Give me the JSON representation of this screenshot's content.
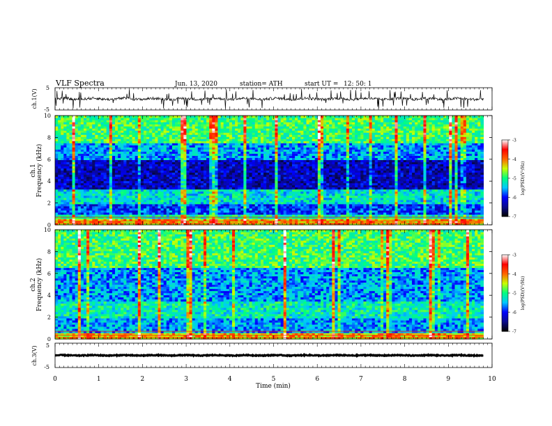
{
  "header": {
    "title": "VLF  Spectra",
    "date": "Jun. 13, 2020",
    "station": "station= ATH",
    "start_label": "start  UT  =",
    "start_time": "12: 50: 1"
  },
  "colors": {
    "trace": "#000000",
    "colormap": [
      "#000000",
      "#0a0a8c",
      "#0000ff",
      "#00c8ff",
      "#00ff80",
      "#c8ff00",
      "#ff6400",
      "#ff0000",
      "#ffffff"
    ]
  },
  "chart_data": [
    {
      "type": "line",
      "panel": "ch1-waveform",
      "ylabel": "ch.1(V)",
      "ylim": [
        -5,
        5
      ],
      "y_ticks": [
        "5",
        "-5"
      ],
      "xlim": [
        0,
        10
      ],
      "x_units": "min",
      "baseline": 0,
      "data_extent_min": 9.8,
      "description_values": {
        "typical_amplitude": 1.0,
        "spike_amplitude": 4.5
      }
    },
    {
      "type": "heatmap",
      "panel": "ch1-spectrogram",
      "ylabel_top": "ch.1",
      "ylabel": "Frequency  (kHz)",
      "ylim": [
        0,
        10
      ],
      "y_ticks": [
        "0",
        "2",
        "4",
        "6",
        "8",
        "10"
      ],
      "xlim": [
        0,
        10
      ],
      "data_extent_min": 9.8,
      "colorbar": {
        "label": "log(PSD)(V²/Hz)",
        "range": [
          -7,
          -3
        ],
        "ticks": [
          "-3",
          "-4",
          "-5",
          "-6",
          "-7"
        ]
      },
      "band_levels": [
        {
          "f": [
            0.0,
            0.5
          ],
          "level": -4.2
        },
        {
          "f": [
            0.5,
            1.0
          ],
          "level": -5.2
        },
        {
          "f": [
            1.0,
            2.0
          ],
          "level": -5.9
        },
        {
          "f": [
            2.0,
            3.2
          ],
          "level": -5.3
        },
        {
          "f": [
            3.2,
            6.0
          ],
          "level": -6.3
        },
        {
          "f": [
            6.0,
            7.5
          ],
          "level": -5.6
        },
        {
          "f": [
            7.5,
            10.0
          ],
          "level": -4.9
        }
      ]
    },
    {
      "type": "heatmap",
      "panel": "ch2-spectrogram",
      "ylabel_top": "ch.2",
      "ylabel": "Frequency  (kHz)",
      "ylim": [
        0,
        10
      ],
      "y_ticks": [
        "0",
        "2",
        "4",
        "6",
        "8",
        "10"
      ],
      "xlim": [
        0,
        10
      ],
      "data_extent_min": 9.8,
      "colorbar": {
        "label": "log(PSD)(V²/Hz)",
        "range": [
          -7,
          -3
        ],
        "ticks": [
          "-3",
          "-4",
          "-5",
          "-6",
          "-7"
        ]
      },
      "band_levels": [
        {
          "f": [
            0.0,
            0.5
          ],
          "level": -4.3
        },
        {
          "f": [
            0.5,
            2.0
          ],
          "level": -5.6
        },
        {
          "f": [
            2.0,
            3.5
          ],
          "level": -5.2
        },
        {
          "f": [
            3.5,
            6.5
          ],
          "level": -5.6
        },
        {
          "f": [
            6.5,
            10.0
          ],
          "level": -4.9
        }
      ]
    },
    {
      "type": "line",
      "panel": "ch3-waveform",
      "ylabel": "ch.3(V)",
      "ylim": [
        -5,
        5
      ],
      "y_ticks": [
        "5",
        "-5"
      ],
      "xlim": [
        0,
        10
      ],
      "xlabel": "Time  (min)",
      "x_ticks": [
        "0",
        "1",
        "2",
        "3",
        "4",
        "5",
        "6",
        "7",
        "8",
        "9",
        "10"
      ],
      "baseline": 0,
      "data_extent_min": 9.8,
      "description_values": {
        "typical_amplitude": 0.3
      }
    }
  ]
}
